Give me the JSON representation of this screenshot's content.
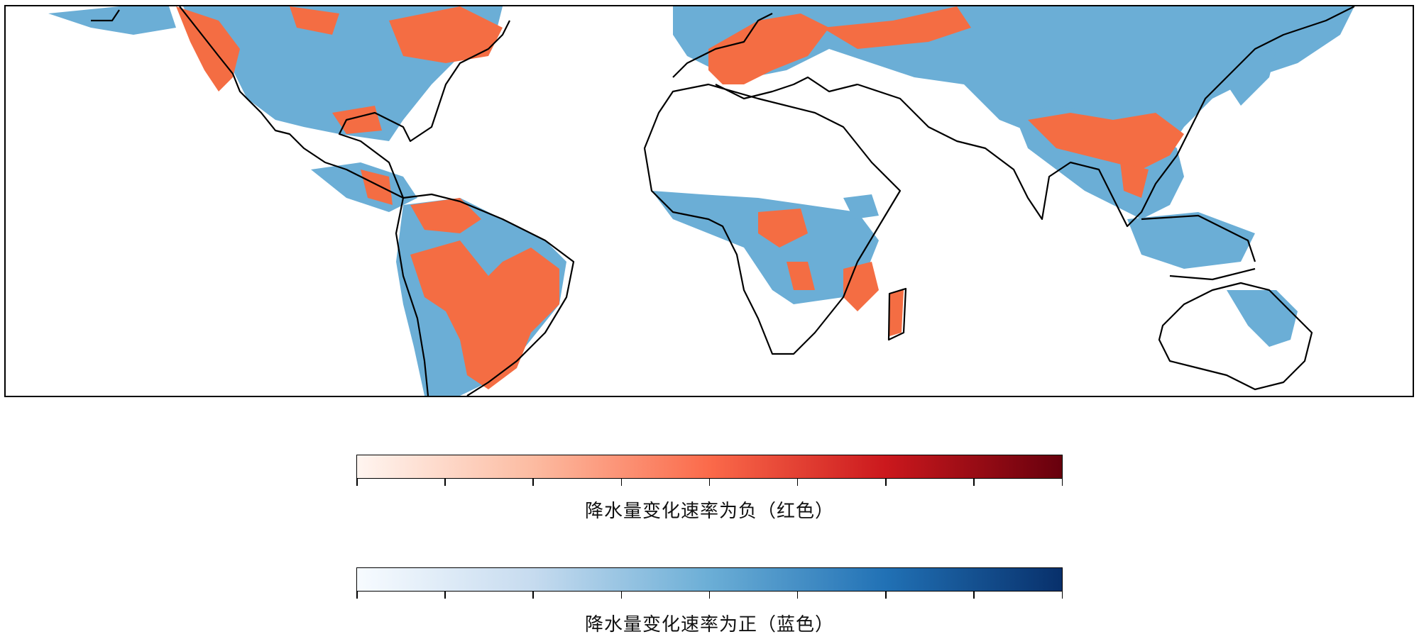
{
  "map": {
    "projection": "plate-carree",
    "extent": "global",
    "negative_color": "#f46d43",
    "positive_color": "#6baed6",
    "coastline_color": "#000000"
  },
  "legend": {
    "negative": {
      "label": "降水量变化速率为负（红色）",
      "colormap": "Reds",
      "colors": [
        "#fff5f0",
        "#fcbba1",
        "#fb6a4a",
        "#cb181d",
        "#67000d"
      ],
      "tick_count": 9
    },
    "positive": {
      "label": "降水量变化速率为正（蓝色）",
      "colormap": "Blues",
      "colors": [
        "#f7fbff",
        "#c6dbef",
        "#6baed6",
        "#2171b5",
        "#08306b"
      ],
      "tick_count": 9
    }
  }
}
